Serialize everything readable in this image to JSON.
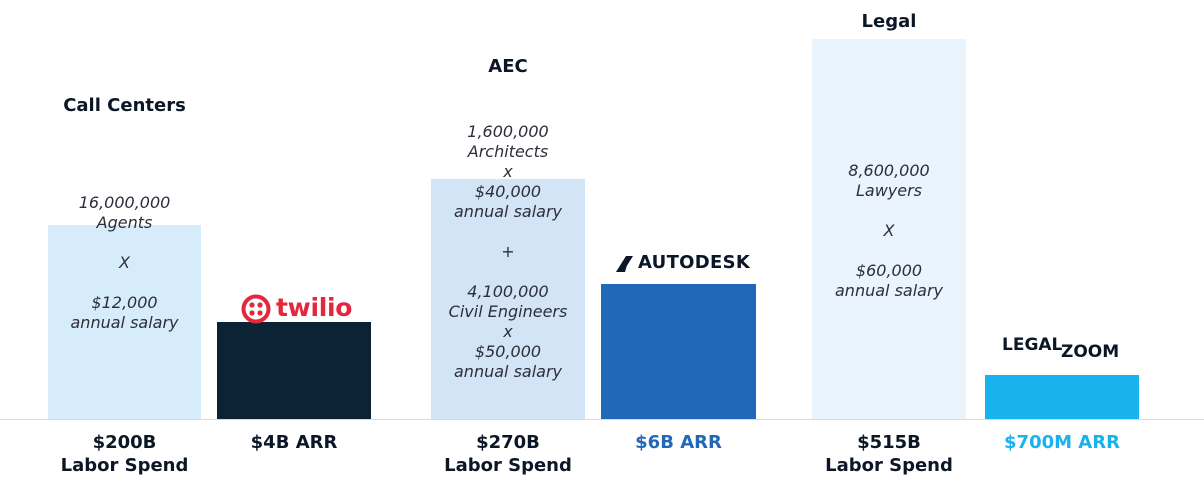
{
  "chart_data": {
    "type": "bar",
    "colors": {
      "labor_call_centers": "#d6ecfb",
      "labor_aec": "#d3e4f6",
      "labor_legal": "#e9f4fd",
      "twilio_bar": "#0c2336",
      "autodesk_bar": "#2268b8",
      "legalzoom_bar": "#18b2ee",
      "twilio_logo": "#e3283e",
      "dark_text": "#0b1626",
      "autodesk_text": "#2268b8",
      "legalzoom_text": "#18b2ee"
    },
    "groups": [
      {
        "title": "Call Centers",
        "labor": {
          "value": 200,
          "lines": [
            "16,000,000",
            "Agents",
            "",
            "X",
            "",
            "$12,000",
            "annual salary"
          ],
          "label_line1": "$200B",
          "label_line2": "Labor Spend"
        },
        "arr": {
          "value": 4,
          "logo": "twilio",
          "label": "$4B ARR"
        }
      },
      {
        "title": "AEC",
        "labor": {
          "value": 270,
          "lines": [
            "1,600,000",
            "Architects",
            "x",
            "$40,000",
            "annual salary",
            "",
            "+",
            "",
            "4,100,000",
            "Civil Engineers",
            "x",
            "$50,000",
            "annual salary"
          ],
          "label_line1": "$270B",
          "label_line2": "Labor Spend"
        },
        "arr": {
          "value": 6,
          "logo": "AUTODESK",
          "label": "$6B ARR"
        }
      },
      {
        "title": "Legal",
        "labor": {
          "value": 515,
          "lines": [
            "8,600,000",
            "Lawyers",
            "",
            "X",
            "",
            "$60,000",
            "annual salary"
          ],
          "label_line1": "$515B",
          "label_line2": "Labor Spend"
        },
        "arr": {
          "value": 0.7,
          "logo_part1": "LEGAL",
          "logo_part2": "ZOOM",
          "label": "$700M ARR"
        }
      }
    ]
  }
}
